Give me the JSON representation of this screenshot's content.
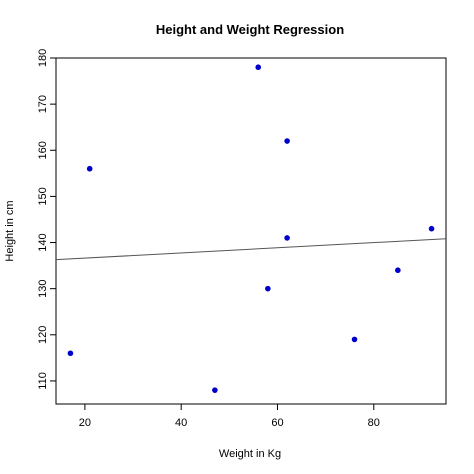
{
  "chart_data": {
    "type": "scatter",
    "title": "Height and Weight Regression",
    "xlabel": "Weight in Kg",
    "ylabel": "Height in cm",
    "xlim": [
      14,
      95
    ],
    "ylim": [
      105,
      180
    ],
    "x_ticks": [
      20,
      40,
      60,
      80
    ],
    "y_ticks": [
      110,
      120,
      130,
      140,
      150,
      160,
      170,
      180
    ],
    "grid": false,
    "legend": "none",
    "point_color": "#0000cc",
    "line_color": "#555555",
    "points": [
      {
        "x": 17,
        "y": 116
      },
      {
        "x": 21,
        "y": 156
      },
      {
        "x": 47,
        "y": 108
      },
      {
        "x": 56,
        "y": 178
      },
      {
        "x": 58,
        "y": 130
      },
      {
        "x": 62,
        "y": 162
      },
      {
        "x": 62,
        "y": 141
      },
      {
        "x": 76,
        "y": 119
      },
      {
        "x": 85,
        "y": 134
      },
      {
        "x": 92,
        "y": 143
      }
    ],
    "regression_line": {
      "intercept": 135.5,
      "slope": 0.056
    }
  }
}
